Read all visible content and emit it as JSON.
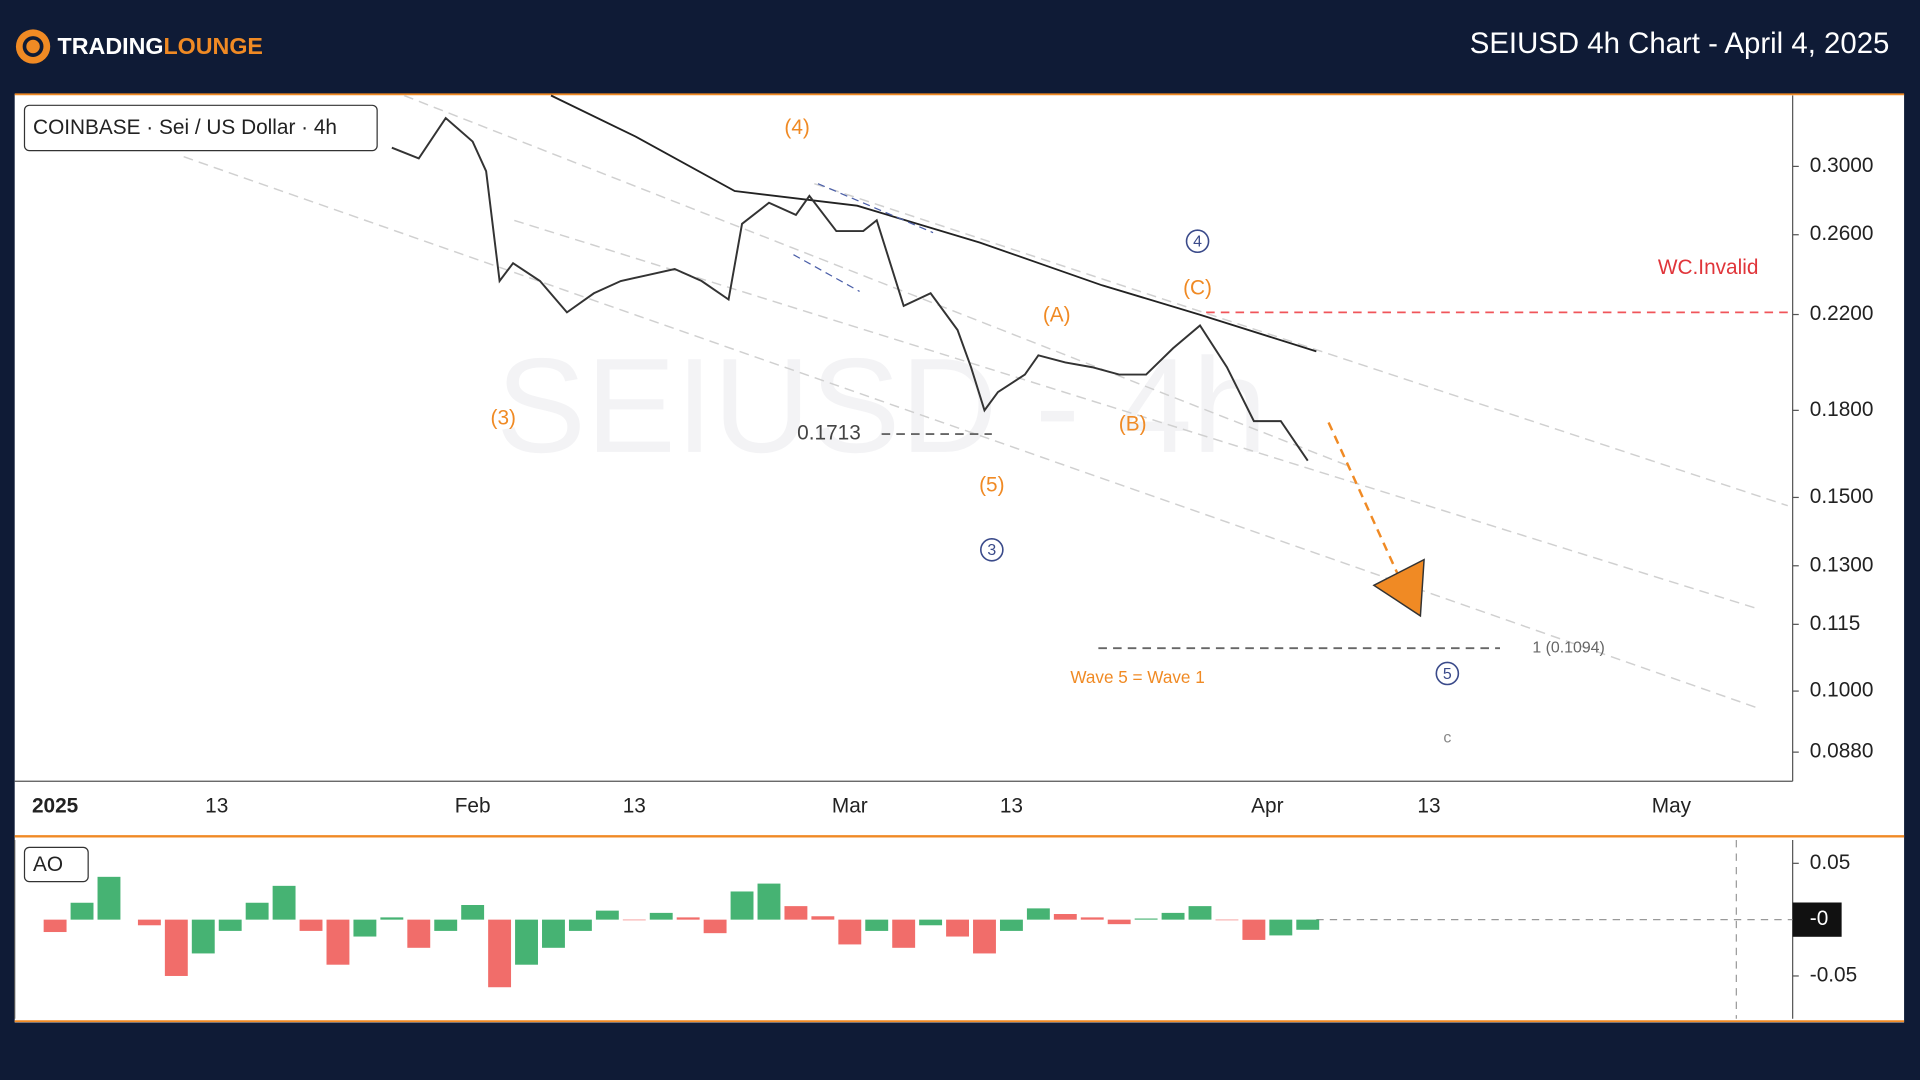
{
  "header": {
    "logo": [
      "TRADING",
      "LOUNGE"
    ],
    "title": "SEIUSD 4h Chart - April 4, 2025"
  },
  "chart_data": [
    {
      "type": "line",
      "subtitle": "COINBASE · Sei / US Dollar · 4h",
      "watermark": "SEIUSD - 4h",
      "log_scale": true,
      "color": "#333333",
      "x": [
        "2025-01-26",
        "2025-01-28",
        "2025-01-30",
        "2025-02-01",
        "2025-02-02",
        "2025-02-03",
        "2025-02-04",
        "2025-02-06",
        "2025-02-08",
        "2025-02-10",
        "2025-02-12",
        "2025-02-14",
        "2025-02-16",
        "2025-02-18",
        "2025-02-20",
        "2025-02-21",
        "2025-02-23",
        "2025-02-25",
        "2025-02-26",
        "2025-02-28",
        "2025-03-02",
        "2025-03-03",
        "2025-03-05",
        "2025-03-07",
        "2025-03-09",
        "2025-03-10",
        "2025-03-11",
        "2025-03-12",
        "2025-03-14",
        "2025-03-15",
        "2025-03-17",
        "2025-03-19",
        "2025-03-21",
        "2025-03-23",
        "2025-03-25",
        "2025-03-27",
        "2025-03-29",
        "2025-03-31",
        "2025-04-02",
        "2025-04-04"
      ],
      "values": [
        0.312,
        0.305,
        0.332,
        0.316,
        0.297,
        0.236,
        0.245,
        0.236,
        0.221,
        0.23,
        0.236,
        0.239,
        0.242,
        0.236,
        0.227,
        0.266,
        0.278,
        0.271,
        0.282,
        0.262,
        0.262,
        0.268,
        0.224,
        0.23,
        0.213,
        0.197,
        0.18,
        0.187,
        0.194,
        0.202,
        0.199,
        0.197,
        0.194,
        0.194,
        0.205,
        0.215,
        0.197,
        0.176,
        0.176,
        0.162
      ],
      "xlim": [
        "2024-12-29",
        "2025-05-10"
      ],
      "xticks": [
        {
          "value": "2025-01-01",
          "label": "2025"
        },
        {
          "value": "2025-01-13",
          "label": "13"
        },
        {
          "value": "2025-02-01",
          "label": "Feb"
        },
        {
          "value": "2025-02-13",
          "label": "13"
        },
        {
          "value": "2025-03-01",
          "label": "Mar"
        },
        {
          "value": "2025-03-13",
          "label": "13"
        },
        {
          "value": "2025-04-01",
          "label": "Apr"
        },
        {
          "value": "2025-04-13",
          "label": "13"
        },
        {
          "value": "2025-05-01",
          "label": "May"
        }
      ],
      "ylim": [
        0.0828,
        0.348
      ],
      "yticks": [
        {
          "value": 0.3,
          "label": "0.3000"
        },
        {
          "value": 0.26,
          "label": "0.2600"
        },
        {
          "value": 0.22,
          "label": "0.2200"
        },
        {
          "value": 0.18,
          "label": "0.1800"
        },
        {
          "value": 0.15,
          "label": "0.1500"
        },
        {
          "value": 0.13,
          "label": "0.1300"
        },
        0.115,
        {
          "value": 0.1,
          "label": "0.1000"
        },
        {
          "value": 0.088,
          "label": "0.0880"
        }
      ],
      "levels": [
        {
          "value": 0.1713
        },
        {
          "label": "WC.Invalid",
          "value": 0.221
        },
        {
          "label": "1 (0.1094)",
          "value": 0.1094
        }
      ],
      "annotations": [
        "(4)",
        "(3)",
        "(5)",
        "3",
        "(A)",
        "(B)",
        "(C)",
        "4",
        "Wave 5 = Wave 1",
        "5",
        "c"
      ]
    },
    {
      "type": "bar",
      "title": "AO",
      "colors": {
        "up": "#26a65b",
        "down": "#ef5350"
      },
      "x": [
        "2025-01-01",
        "2025-01-03",
        "2025-01-05",
        "2025-01-08",
        "2025-01-10",
        "2025-01-12",
        "2025-01-14",
        "2025-01-16",
        "2025-01-18",
        "2025-01-20",
        "2025-01-22",
        "2025-01-24",
        "2025-01-26",
        "2025-01-28",
        "2025-01-30",
        "2025-02-01",
        "2025-02-03",
        "2025-02-05",
        "2025-02-07",
        "2025-02-09",
        "2025-02-11",
        "2025-02-13",
        "2025-02-15",
        "2025-02-17",
        "2025-02-19",
        "2025-02-21",
        "2025-02-23",
        "2025-02-25",
        "2025-02-27",
        "2025-03-01",
        "2025-03-03",
        "2025-03-05",
        "2025-03-07",
        "2025-03-09",
        "2025-03-11",
        "2025-03-13",
        "2025-03-15",
        "2025-03-17",
        "2025-03-19",
        "2025-03-21",
        "2025-03-23",
        "2025-03-25",
        "2025-03-27",
        "2025-03-29",
        "2025-03-31",
        "2025-04-02",
        "2025-04-04"
      ],
      "values": [
        -0.011,
        0.015,
        0.038,
        -0.005,
        -0.05,
        -0.03,
        -0.01,
        0.015,
        0.03,
        -0.01,
        -0.04,
        -0.015,
        0.002,
        -0.025,
        -0.01,
        0.013,
        -0.06,
        -0.04,
        -0.025,
        -0.01,
        0.008,
        0.0,
        0.006,
        0.002,
        -0.012,
        0.025,
        0.032,
        0.012,
        0.003,
        -0.022,
        -0.01,
        -0.025,
        -0.005,
        -0.015,
        -0.03,
        -0.01,
        0.01,
        0.005,
        0.002,
        -0.004,
        0.001,
        0.006,
        0.012,
        0.0,
        -0.018,
        -0.014,
        -0.009
      ],
      "xlim": [
        "2024-12-29",
        "2025-05-10"
      ],
      "ylim": [
        -0.088,
        0.0707
      ],
      "yticks": [
        0.05,
        {
          "value": 0,
          "label": "-0"
        },
        -0.05
      ]
    }
  ]
}
